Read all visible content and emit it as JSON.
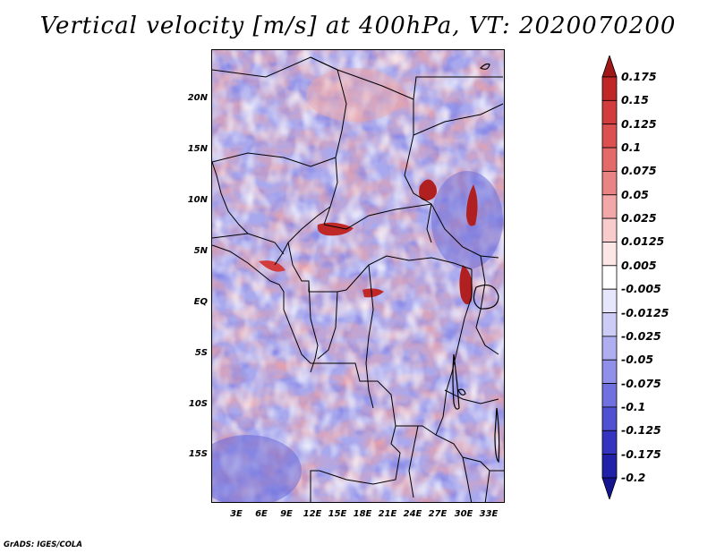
{
  "title": "Vertical velocity [m/s] at 400hPa, VT: 2020070200",
  "credit": "GrADS: IGES/COLA",
  "lat_ticks": [
    "20N",
    "15N",
    "10N",
    "5N",
    "EQ",
    "5S",
    "10S",
    "15S"
  ],
  "lon_ticks": [
    "3E",
    "6E",
    "9E",
    "12E",
    "15E",
    "18E",
    "21E",
    "24E",
    "27E",
    "30E",
    "33E"
  ],
  "colorbar": {
    "labels": [
      "0.175",
      "0.15",
      "0.125",
      "0.1",
      "0.075",
      "0.05",
      "0.025",
      "0.0125",
      "0.005",
      "-0.005",
      "-0.0125",
      "-0.025",
      "-0.05",
      "-0.075",
      "-0.1",
      "-0.125",
      "-0.175",
      "-0.2"
    ],
    "colors": [
      "#a01818",
      "#c02828",
      "#d23c3c",
      "#dc5050",
      "#e46a6a",
      "#ea8484",
      "#f2a8a8",
      "#f8cccc",
      "#fce6e6",
      "#ffffff",
      "#e6e6fc",
      "#ccccf6",
      "#aeaef0",
      "#9090ea",
      "#7070e0",
      "#5050d2",
      "#3434c0",
      "#2020a8",
      "#141490"
    ]
  },
  "map": {
    "region": "Central Africa",
    "field": "vertical velocity",
    "units": "m/s",
    "level": "400hPa",
    "valid_time": "2020070200",
    "lon_range": [
      0,
      35
    ],
    "lat_range": [
      -19,
      25
    ]
  }
}
